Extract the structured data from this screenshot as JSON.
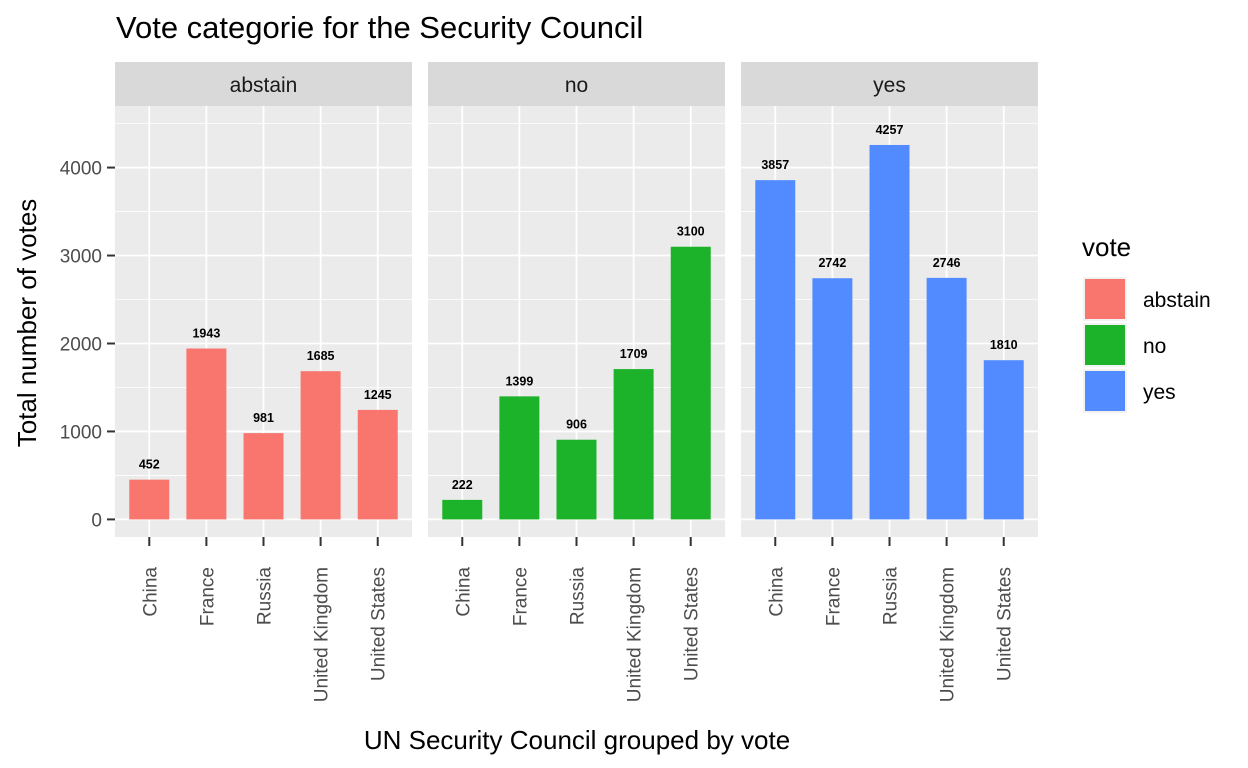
{
  "chart_data": {
    "type": "bar",
    "title": "Vote categorie for the Security Council",
    "xlabel": "UN Security Council grouped by vote",
    "ylabel": "Total number of votes",
    "ylim": [
      -200,
      4700
    ],
    "y_ticks": [
      0,
      1000,
      2000,
      3000,
      4000
    ],
    "y_tick_labels": [
      "0",
      "1000",
      "2000",
      "3000",
      "4000"
    ],
    "grid": true,
    "categories": [
      "China",
      "France",
      "Russia",
      "United Kingdom",
      "United States"
    ],
    "facets": [
      {
        "name": "abstain",
        "color": "#F8766D",
        "values": [
          452,
          1943,
          981,
          1685,
          1245
        ]
      },
      {
        "name": "no",
        "color": "#1CB229",
        "values": [
          222,
          1399,
          906,
          1709,
          3100
        ]
      },
      {
        "name": "yes",
        "color": "#528BFF",
        "values": [
          3857,
          2742,
          4257,
          2746,
          1810
        ]
      }
    ],
    "legend": {
      "title": "vote",
      "position": "right",
      "items": [
        {
          "label": "abstain",
          "color": "#F8766D"
        },
        {
          "label": "no",
          "color": "#1CB229"
        },
        {
          "label": "yes",
          "color": "#528BFF"
        }
      ]
    },
    "panel_background": "#EBEBEB",
    "strip_background": "#D9D9D9",
    "grid_color": "#FFFFFF"
  }
}
